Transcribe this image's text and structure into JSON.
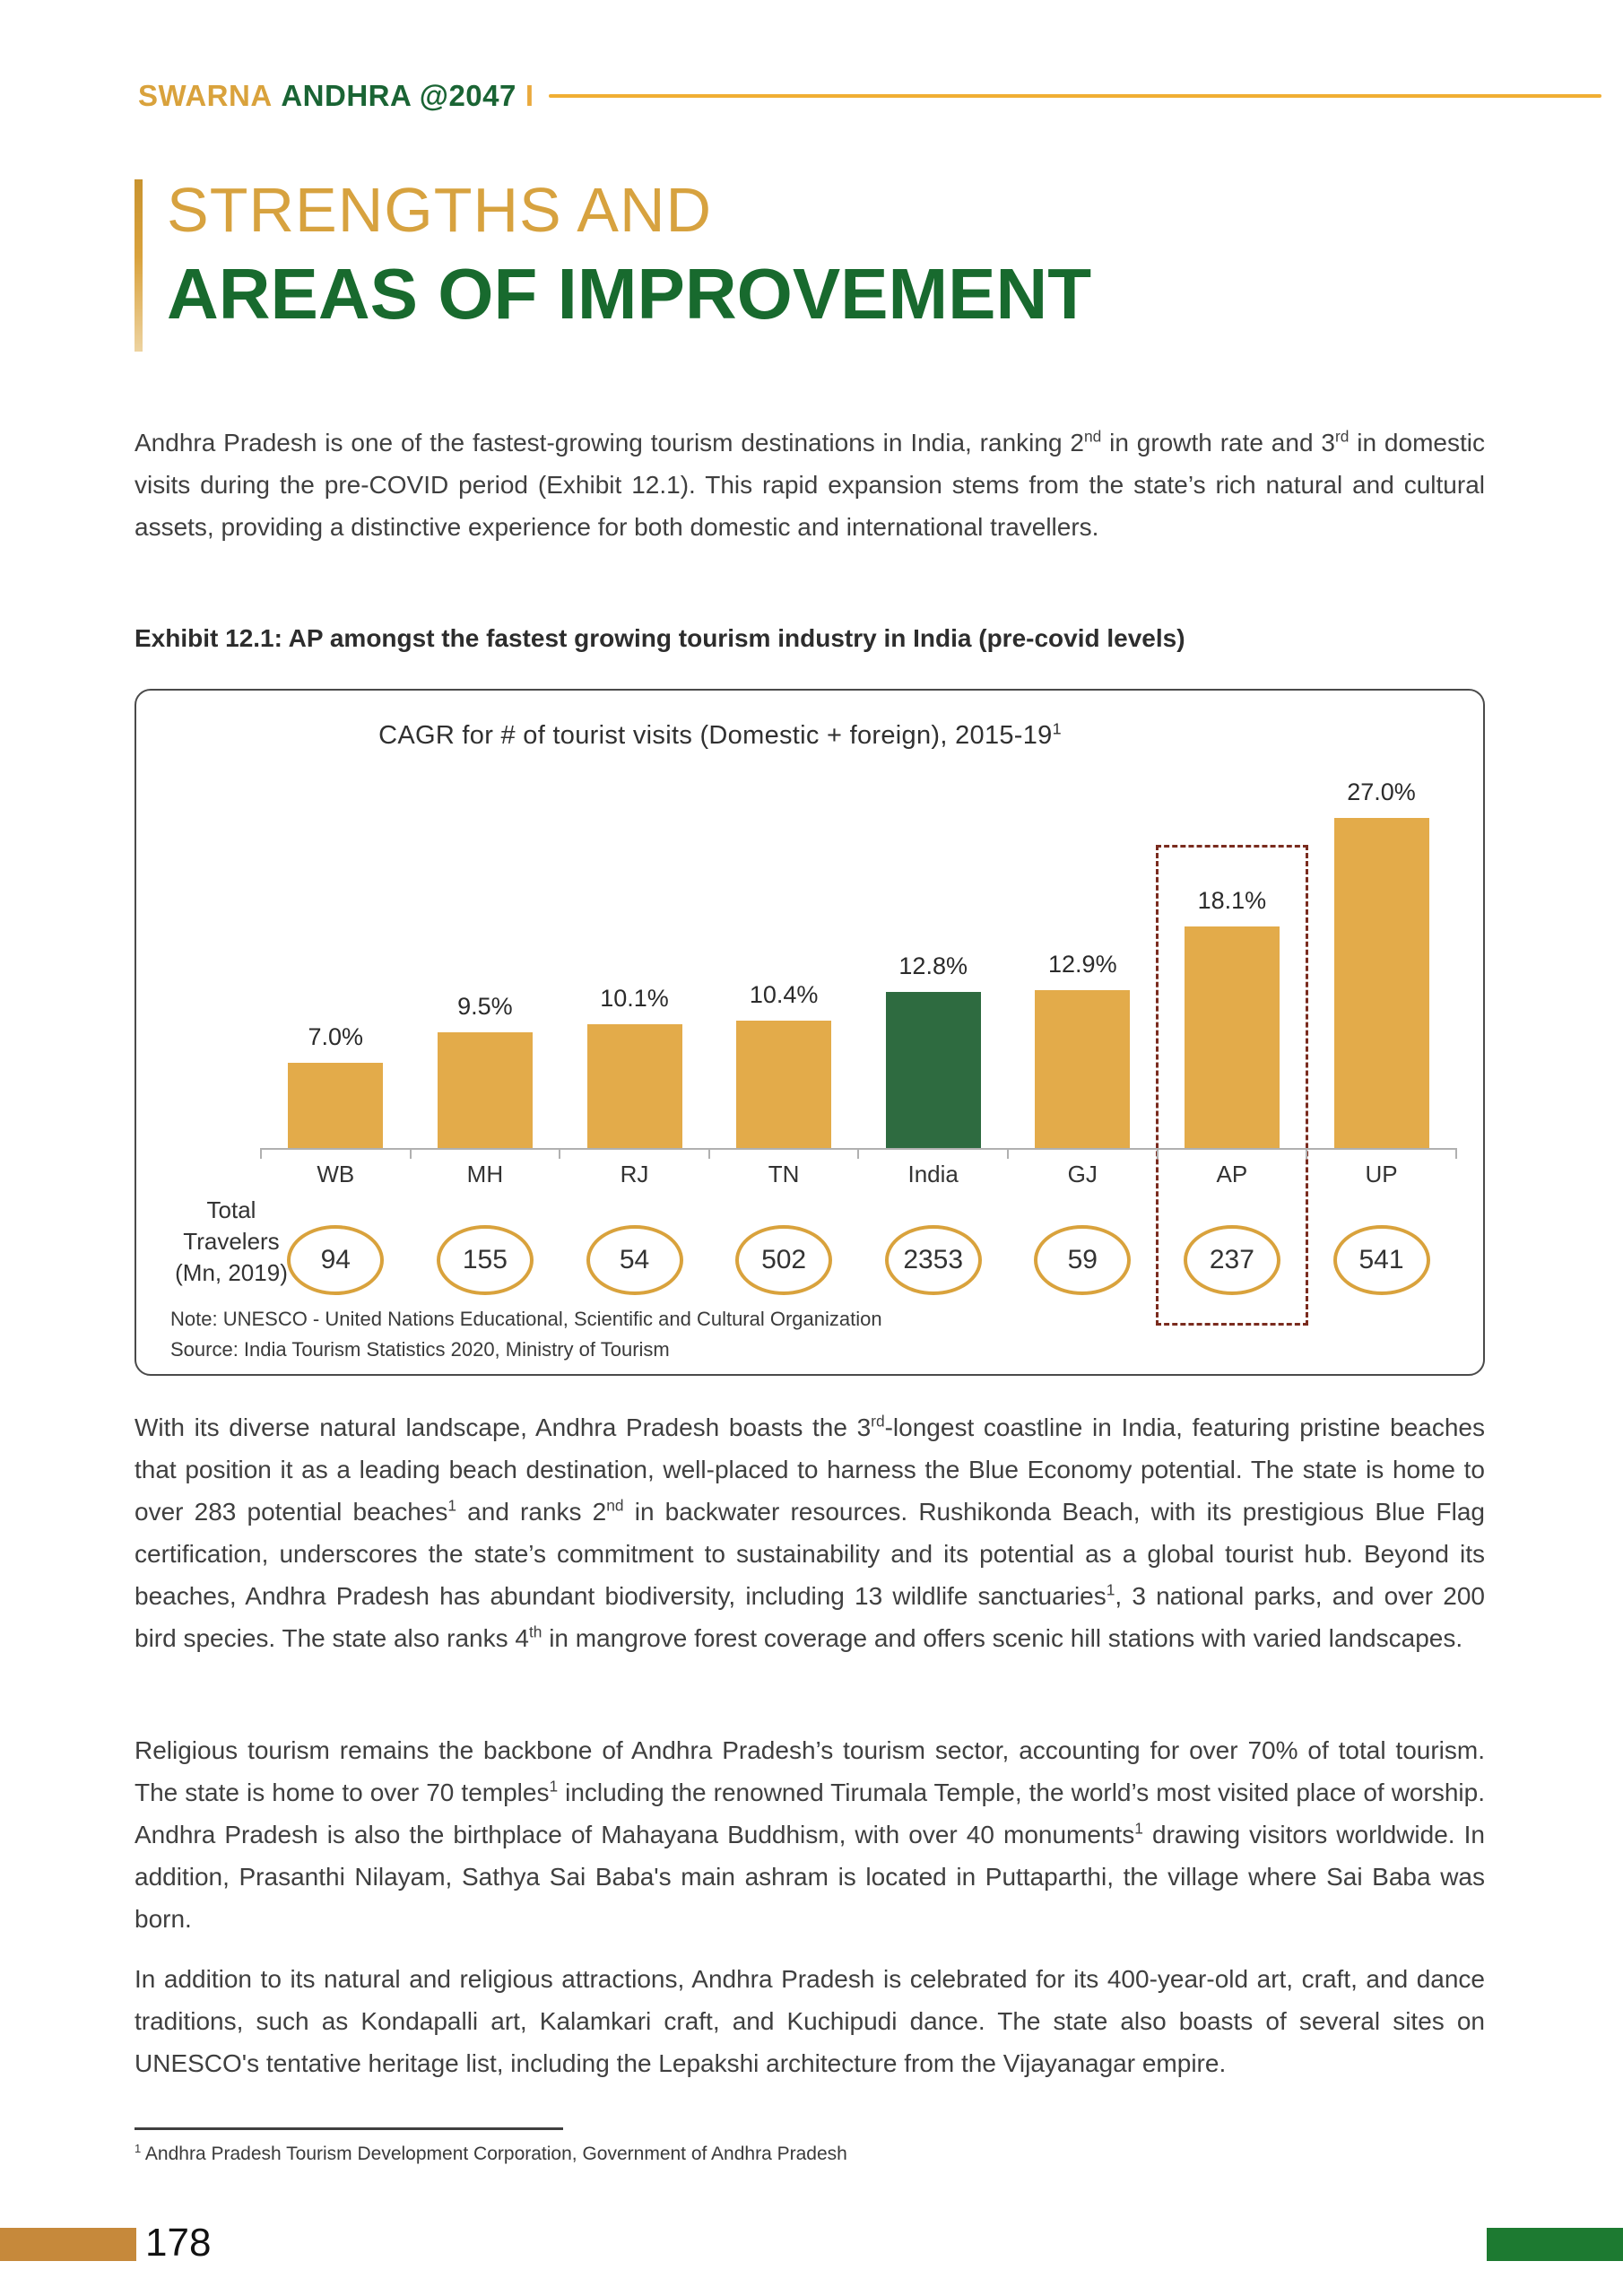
{
  "page": {
    "header": {
      "brand_gold": "SWARNA",
      "brand_green": "ANDHRA @2047",
      "separator": "I"
    },
    "title": {
      "line1": "STRENGTHS AND",
      "line2": "AREAS OF IMPROVEMENT"
    },
    "paragraphs": {
      "p1": [
        {
          "t": "Andhra Pradesh is one of the fastest-growing tourism destinations in India, ranking 2"
        },
        {
          "t": "nd",
          "sup": true
        },
        {
          "t": " in growth rate and 3"
        },
        {
          "t": "rd",
          "sup": true
        },
        {
          "t": " in domestic visits during the pre-COVID period (Exhibit 12.1). This rapid expansion stems from the state’s rich natural and cultural assets, providing a distinctive experience for both domestic and international travellers."
        }
      ],
      "p2": [
        {
          "t": "With its diverse natural landscape, Andhra Pradesh boasts the 3"
        },
        {
          "t": "rd",
          "sup": true
        },
        {
          "t": "-longest coastline in India, featuring pristine beaches that position it as a leading beach destination, well-placed to harness the Blue Economy potential. The state is home to over 283 potential beaches"
        },
        {
          "t": "1",
          "sup": true
        },
        {
          "t": " and ranks 2"
        },
        {
          "t": "nd",
          "sup": true
        },
        {
          "t": " in backwater resources. Rushikonda Beach, with its prestigious Blue Flag certification, underscores the state’s commitment to sustainability and its potential as a global tourist hub. Beyond its beaches, Andhra Pradesh has abundant biodiversity, including 13 wildlife sanctuaries"
        },
        {
          "t": "1",
          "sup": true
        },
        {
          "t": ", 3 national parks, and over 200 bird species. The state also ranks 4"
        },
        {
          "t": "th",
          "sup": true
        },
        {
          "t": " in mangrove forest coverage and offers scenic hill stations with varied landscapes."
        }
      ],
      "p3": [
        {
          "t": "Religious tourism remains the backbone of Andhra Pradesh’s tourism sector, accounting for over 70% of total tourism. The state is home to over 70 temples"
        },
        {
          "t": "1",
          "sup": true
        },
        {
          "t": " including the renowned Tirumala Temple, the world’s most visited place of worship. Andhra Pradesh is also the birthplace of Mahayana Buddhism, with over 40 monuments"
        },
        {
          "t": "1",
          "sup": true
        },
        {
          "t": " drawing visitors worldwide. In addition, Prasanthi Nilayam, Sathya Sai Baba's main ashram is located in Puttaparthi, the village where Sai Baba was born."
        }
      ],
      "p4": [
        {
          "t": "In addition to its natural and religious attractions, Andhra Pradesh is celebrated for its 400-year-old art, craft, and dance traditions, such as Kondapalli art, Kalamkari craft, and Kuchipudi dance. The state also boasts of several sites on UNESCO's tentative heritage list, including the Lepakshi architecture from the Vijayanagar empire."
        }
      ]
    },
    "exhibit_heading": "Exhibit 12.1: AP amongst the fastest growing tourism industry in India (pre-covid levels)",
    "footnote": [
      {
        "t": "1",
        "sup": true
      },
      {
        "t": " Andhra Pradesh Tourism Development Corporation, Government of Andhra Pradesh"
      }
    ],
    "page_number": "178",
    "colors": {
      "brand_gold": "#D9A23C",
      "brand_green": "#1A6434",
      "title_gold": "#D7A23F",
      "title_green": "#186A2E",
      "footer_gold": "#C6893B",
      "footer_green": "#1D7A31"
    }
  },
  "chart_data": {
    "type": "bar",
    "title": "CAGR for # of tourist visits (Domestic + foreign), 2015-19",
    "title_superscript": "1",
    "categories": [
      "WB",
      "MH",
      "RJ",
      "TN",
      "India",
      "GJ",
      "AP",
      "UP"
    ],
    "values": [
      7.0,
      9.5,
      10.1,
      10.4,
      12.8,
      12.9,
      18.1,
      27.0
    ],
    "labels": [
      "7.0%",
      "9.5%",
      "10.1%",
      "10.4%",
      "12.8%",
      "12.9%",
      "18.1%",
      "27.0%"
    ],
    "row_label_lines": [
      "Total",
      "Travelers",
      "(Mn, 2019)"
    ],
    "total_travelers": [
      "94",
      "155",
      "54",
      "502",
      "2353",
      "59",
      "237",
      "541"
    ],
    "emphasis_category": "India",
    "highlight_category": "AP",
    "bar_color": "#E3AB4A",
    "emphasis_color": "#2E6B40",
    "highlight_box_color": "#7A2B1E",
    "oval_border_color": "#D9A23C",
    "axis_color": "#B0B0B0",
    "ylim": [
      0,
      27
    ],
    "grid": false,
    "legend": "none",
    "note": "Note: UNESCO - United Nations Educational, Scientific and Cultural Organization",
    "source": "Source: India Tourism Statistics 2020, Ministry of Tourism"
  }
}
